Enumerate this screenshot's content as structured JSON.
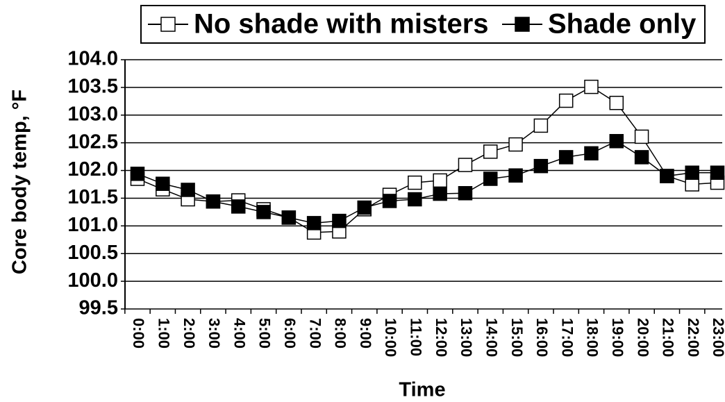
{
  "chart_data": {
    "type": "line",
    "ylabel": "Core body temp, °F",
    "xlabel": "Time",
    "categories": [
      "0:00",
      "1:00",
      "2:00",
      "3:00",
      "4:00",
      "5:00",
      "6:00",
      "7:00",
      "8:00",
      "9:00",
      "10:00",
      "11:00",
      "12:00",
      "13:00",
      "14:00",
      "15:00",
      "16:00",
      "17:00",
      "18:00",
      "19:00",
      "20:00",
      "21:00",
      "22:00",
      "23:00"
    ],
    "series": [
      {
        "name": "No shade with misters",
        "color": "#000000",
        "marker_fill": "#ffffff",
        "values": [
          101.85,
          101.66,
          101.48,
          101.44,
          101.46,
          101.3,
          101.15,
          100.88,
          100.9,
          101.3,
          101.56,
          101.78,
          101.82,
          102.1,
          102.34,
          102.47,
          102.81,
          103.26,
          103.51,
          103.22,
          102.61,
          101.9,
          101.75,
          101.78
        ]
      },
      {
        "name": "Shade only",
        "color": "#000000",
        "marker_fill": "#000000",
        "values": [
          101.94,
          101.76,
          101.65,
          101.44,
          101.35,
          101.25,
          101.15,
          101.05,
          101.09,
          101.33,
          101.45,
          101.48,
          101.58,
          101.59,
          101.85,
          101.91,
          102.08,
          102.24,
          102.31,
          102.53,
          102.24,
          101.9,
          101.96,
          101.96
        ]
      }
    ],
    "ylim": [
      99.5,
      104.0
    ],
    "yticks": [
      99.5,
      {
        "value": 100.0,
        "label": "100.0"
      },
      100.5,
      {
        "value": 101.0,
        "label": "101.0"
      },
      101.5,
      {
        "value": 102.0,
        "label": "102.0"
      },
      102.5,
      {
        "value": 103.0,
        "label": "103.0"
      },
      103.5,
      {
        "value": 104.0,
        "label": "104.0"
      }
    ],
    "grid": true,
    "legend": "top"
  }
}
